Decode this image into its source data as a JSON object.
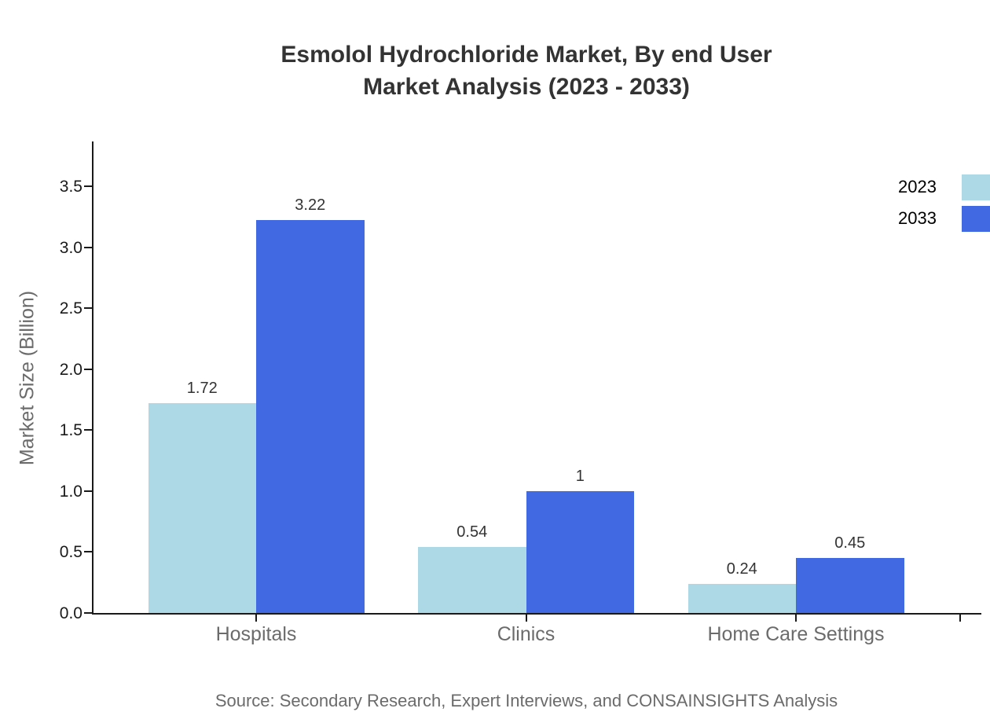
{
  "chart_data": {
    "type": "bar",
    "title": "Esmolol Hydrochloride Market, By end User Market Analysis (2023 - 2033)",
    "title_lines": [
      "Esmolol Hydrochloride Market, By end User",
      "Market Analysis (2023 - 2033)"
    ],
    "categories": [
      "Hospitals",
      "Clinics",
      "Home Care Settings"
    ],
    "series": [
      {
        "name": "2023",
        "color": "#ADD8E6",
        "values": [
          1.72,
          0.54,
          0.24
        ],
        "value_labels": [
          "1.72",
          "0.54",
          "0.24"
        ]
      },
      {
        "name": "2033",
        "color": "#4169E1",
        "values": [
          3.22,
          1,
          0.45
        ],
        "value_labels": [
          "3.22",
          "1",
          "0.45"
        ]
      }
    ],
    "xlabel": "",
    "ylabel": "Market Size (Billion)",
    "ylim": [
      0,
      3.87
    ],
    "yticks": [
      0.0,
      0.5,
      1.0,
      1.5,
      2.0,
      2.5,
      3.0,
      3.5
    ],
    "ytick_labels": [
      "0.0",
      "0.5",
      "1.0",
      "1.5",
      "2.0",
      "2.5",
      "3.0",
      "3.5"
    ],
    "grid": false,
    "legend_position": "upper-right"
  },
  "source_note": "Source: Secondary Research, Expert Interviews, and CONSAINSIGHTS Analysis",
  "colors": {
    "background": "#ffffff",
    "title_text": "#333333",
    "axis_text": "#6b6b6b",
    "tick_text": "#1a1a1a",
    "spine": "#1a1a1a",
    "series_2023": "#ADD8E6",
    "series_2033": "#4169E1"
  }
}
